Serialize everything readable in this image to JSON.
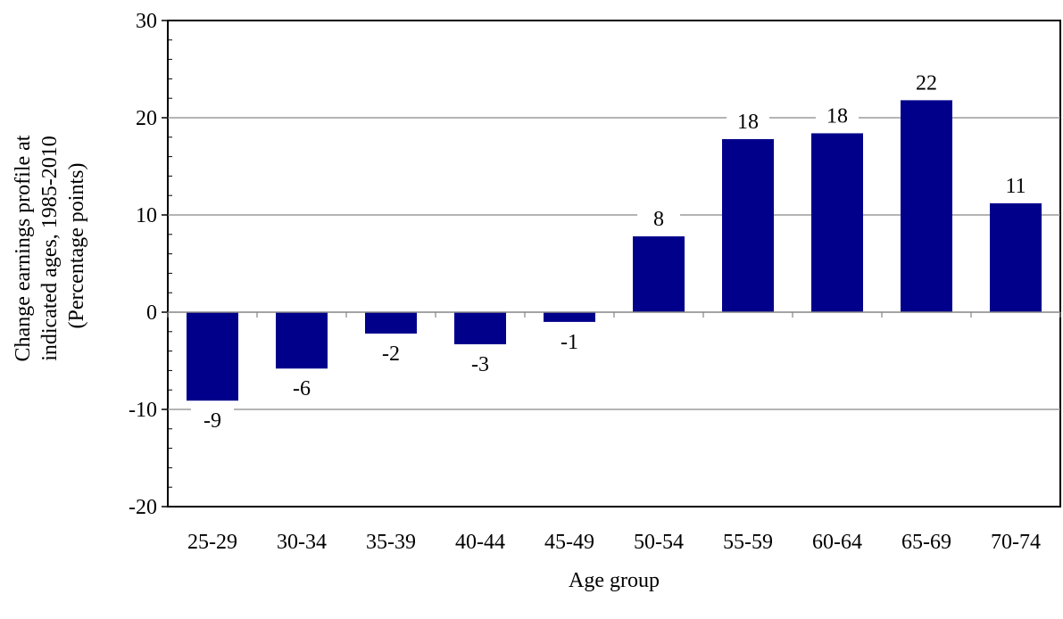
{
  "chart_data": {
    "type": "bar",
    "title": "",
    "xlabel": "Age group",
    "ylabel_lines": [
      "Change earnings profile at",
      "indicated ages, 1985-2010",
      "(Percentage points)"
    ],
    "categories": [
      "25-29",
      "30-34",
      "35-39",
      "40-44",
      "45-49",
      "50-54",
      "55-59",
      "60-64",
      "65-69",
      "70-74"
    ],
    "values": [
      -9.1,
      -5.8,
      -2.2,
      -3.3,
      -1.0,
      7.8,
      17.8,
      18.4,
      21.8,
      11.2
    ],
    "data_labels": [
      "-9",
      "-6",
      "-2",
      "-3",
      "-1",
      "8",
      "18",
      "18",
      "22",
      "11"
    ],
    "ylim": [
      -20,
      30
    ],
    "yticks": [
      -20,
      -10,
      0,
      10,
      20,
      30
    ],
    "ytick_labels": [
      "-20",
      "-10",
      "0",
      "10",
      "20",
      "30"
    ],
    "grid": true,
    "legend": "none",
    "bar_color": "#00008b",
    "grid_color": "#868686"
  }
}
